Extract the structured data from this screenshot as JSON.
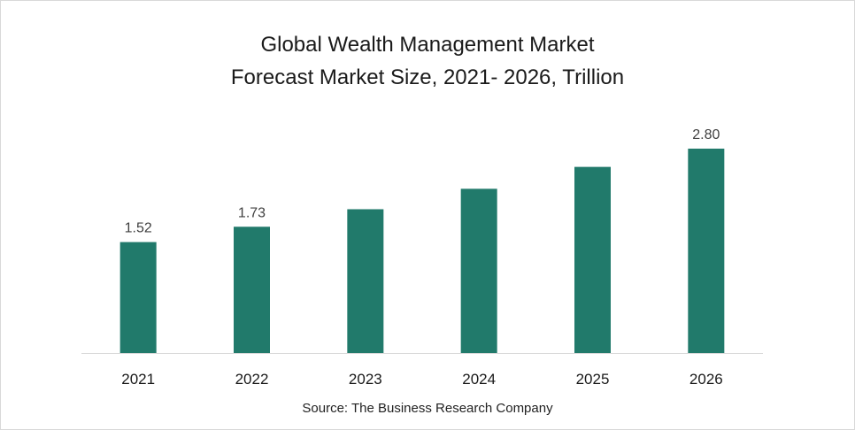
{
  "chart_data": {
    "type": "bar",
    "title_line1": "Global Wealth Management Market",
    "title_line2": "Forecast Market Size, 2021- 2026, Trillion",
    "source": "Source: The Business Research Company",
    "categories": [
      "2021",
      "2022",
      "2023",
      "2024",
      "2025",
      "2026"
    ],
    "values": [
      1.52,
      1.73,
      1.97,
      2.25,
      2.55,
      2.8
    ],
    "data_labels": [
      "1.52",
      "1.73",
      "",
      "",
      "",
      "2.80"
    ],
    "ylim": [
      0,
      2.8
    ],
    "grid": false,
    "legend": "none",
    "bar_color": "#217a6b"
  }
}
